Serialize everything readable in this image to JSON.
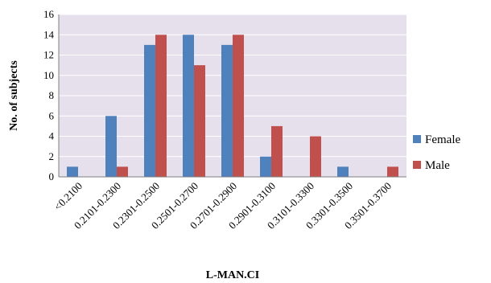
{
  "chart_data": {
    "type": "bar",
    "categories": [
      "<0.2100",
      "0.2101-0.2300",
      "0.2301-0.2500",
      "0.2501-0.2700",
      "0.2701-0.2900",
      "0.2901-0.3100",
      "0.3101-0.3300",
      "0.3301-0.3500",
      "0.3501-0.3700"
    ],
    "series": [
      {
        "name": "Female",
        "values": [
          1,
          6,
          13,
          14,
          13,
          2,
          0,
          1,
          0
        ],
        "color": "#4F81BD"
      },
      {
        "name": "Male",
        "values": [
          0,
          1,
          14,
          11,
          14,
          5,
          4,
          0,
          1
        ],
        "color": "#C0504D"
      }
    ],
    "title": "",
    "xlabel": "L-MAN.CI",
    "ylabel": "No. of subjects",
    "ylim": [
      0,
      16
    ],
    "yticks": [
      0,
      2,
      4,
      6,
      8,
      10,
      12,
      14,
      16
    ],
    "grid": true,
    "legend_position": "right",
    "plot_background": "#E6E0EC",
    "grid_color": "#FFFFFF"
  }
}
